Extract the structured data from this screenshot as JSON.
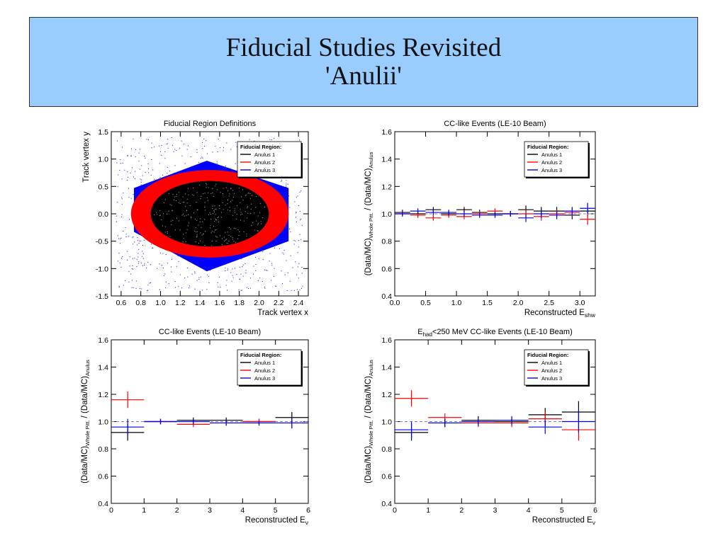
{
  "slide": {
    "title": "Fiducial Studies Revisited",
    "subtitle": "'Anulii'"
  },
  "colors": {
    "title_bg": "#99ccff",
    "anulus1": "#000000",
    "anulus2": "#ff0000",
    "anulus3": "#0000ff",
    "reference_line": "#8080c0"
  },
  "chart_data": [
    {
      "type": "scatter",
      "title": "Fiducial Region Definitions",
      "xlabel": "Track vertex x",
      "ylabel": "Track vertex y",
      "xlim": [
        0.5,
        2.5
      ],
      "ylim": [
        -1.5,
        1.5
      ],
      "xticks": [
        "0.6",
        "0.8",
        "1.0",
        "1.2",
        "1.4",
        "1.6",
        "1.8",
        "2.0",
        "2.2",
        "2.4"
      ],
      "yticks": [
        "-1.5",
        "-1.0",
        "-0.5",
        "0.0",
        "0.5",
        "1.0",
        "1.5"
      ],
      "legend": {
        "title": "Fiducial Region:",
        "entries": [
          "Anulus 1",
          "Anulus 2",
          "Anulus 3"
        ],
        "position": "top-right"
      },
      "regions": [
        {
          "name": "Anulus 3",
          "polygon": [
            [
              0.73,
              -0.33
            ],
            [
              0.73,
              0.47
            ],
            [
              1.47,
              0.97
            ],
            [
              2.3,
              0.47
            ],
            [
              2.3,
              -0.5
            ],
            [
              1.47,
              -1.05
            ]
          ]
        },
        {
          "name": "Anulus 2",
          "center": [
            1.5,
            0.0
          ],
          "rx": 0.8,
          "ry": 0.8
        },
        {
          "name": "Anulus 1",
          "center": [
            1.5,
            0.0
          ],
          "rx": 0.6,
          "ry": 0.6
        }
      ]
    },
    {
      "type": "scatter",
      "title": "CC-like Events (LE-10 Beam)",
      "xlabel": "Reconstructed E",
      "xlabel_sub": "shw",
      "ylabel_parts": [
        "(Data/MC)",
        "Whole Pitt.",
        " / (Data/MC)",
        "Anulus"
      ],
      "xlim": [
        0,
        3.25
      ],
      "ylim": [
        0.4,
        1.6
      ],
      "xticks": [
        "0.0",
        "0.5",
        "1.0",
        "1.5",
        "2.0",
        "2.5",
        "3.0"
      ],
      "yticks": [
        "0.4",
        "0.6",
        "0.8",
        "1.0",
        "1.2",
        "1.4",
        "1.6"
      ],
      "reference": 1.0,
      "legend": {
        "title": "Fiducial Region:",
        "entries": [
          "Anulus 1",
          "Anulus 2",
          "Anulus 3"
        ],
        "position": "top-right"
      },
      "series": [
        {
          "name": "Anulus 1",
          "x": [
            0.125,
            0.375,
            0.625,
            0.875,
            1.125,
            1.375,
            1.625,
            1.875,
            2.125,
            2.375,
            2.625,
            2.875,
            3.125
          ],
          "y": [
            1.01,
            1.0,
            1.03,
            1.0,
            1.03,
            1.01,
            1.0,
            1.0,
            1.03,
            1.02,
            1.02,
            0.99,
            1.02
          ],
          "err": [
            0.02,
            0.02,
            0.02,
            0.02,
            0.02,
            0.02,
            0.02,
            0.02,
            0.03,
            0.03,
            0.03,
            0.03,
            0.04
          ]
        },
        {
          "name": "Anulus 2",
          "x": [
            0.125,
            0.375,
            0.625,
            0.875,
            1.125,
            1.375,
            1.625,
            1.875,
            2.125,
            2.375,
            2.625,
            2.875,
            3.125
          ],
          "y": [
            1.0,
            0.99,
            0.97,
            0.99,
            0.98,
            1.0,
            1.02,
            1.0,
            1.0,
            0.98,
            1.0,
            1.01,
            0.96
          ],
          "err": [
            0.02,
            0.02,
            0.02,
            0.02,
            0.02,
            0.02,
            0.02,
            0.02,
            0.03,
            0.03,
            0.03,
            0.03,
            0.04
          ]
        },
        {
          "name": "Anulus 3",
          "x": [
            0.125,
            0.375,
            0.625,
            0.875,
            1.125,
            1.375,
            1.625,
            1.875,
            2.125,
            2.375,
            2.625,
            2.875,
            3.125
          ],
          "y": [
            1.0,
            1.02,
            1.01,
            1.01,
            1.0,
            0.99,
            0.99,
            1.0,
            0.97,
            1.0,
            0.99,
            1.02,
            1.04
          ],
          "err": [
            0.02,
            0.02,
            0.02,
            0.02,
            0.02,
            0.02,
            0.02,
            0.02,
            0.03,
            0.03,
            0.03,
            0.03,
            0.04
          ]
        }
      ]
    },
    {
      "type": "scatter",
      "title": "CC-like Events (LE-10 Beam)",
      "xlabel": "Reconstructed E",
      "xlabel_sub": "ν",
      "ylabel_parts": [
        "(Data/MC)",
        "Whole Pitt.",
        " / (Data/MC)",
        "Anulus"
      ],
      "xlim": [
        0,
        6
      ],
      "ylim": [
        0.4,
        1.6
      ],
      "xticks": [
        "0",
        "1",
        "2",
        "3",
        "4",
        "5",
        "6"
      ],
      "yticks": [
        "0.4",
        "0.6",
        "0.8",
        "1.0",
        "1.2",
        "1.4",
        "1.6"
      ],
      "reference": 1.0,
      "legend": {
        "title": "Fiducial Region:",
        "entries": [
          "Anulus 1",
          "Anulus 2",
          "Anulus 3"
        ],
        "position": "top-right"
      },
      "series": [
        {
          "name": "Anulus 1",
          "x": [
            0.5,
            1.5,
            2.5,
            3.5,
            4.5,
            5.5
          ],
          "y": [
            0.92,
            1.0,
            1.01,
            1.01,
            1.0,
            1.03
          ],
          "err": [
            0.06,
            0.02,
            0.02,
            0.02,
            0.02,
            0.04
          ]
        },
        {
          "name": "Anulus 2",
          "x": [
            0.5,
            1.5,
            2.5,
            3.5,
            4.5,
            5.5
          ],
          "y": [
            1.16,
            1.0,
            0.98,
            0.99,
            1.0,
            0.99
          ],
          "err": [
            0.06,
            0.02,
            0.02,
            0.02,
            0.02,
            0.04
          ]
        },
        {
          "name": "Anulus 3",
          "x": [
            0.5,
            1.5,
            2.5,
            3.5,
            4.5,
            5.5
          ],
          "y": [
            0.96,
            1.0,
            1.0,
            0.99,
            0.99,
            0.99
          ],
          "err": [
            0.06,
            0.02,
            0.02,
            0.02,
            0.02,
            0.04
          ]
        }
      ]
    },
    {
      "type": "scatter",
      "title_parts": [
        "E",
        "had",
        "<250 MeV CC-like Events (LE-10 Beam)"
      ],
      "xlabel": "Reconstructed E",
      "xlabel_sub": "ν",
      "ylabel_parts": [
        "(Data/MC)",
        "Whole Pitt.",
        " / (Data/MC)",
        "Anulus"
      ],
      "xlim": [
        0,
        6
      ],
      "ylim": [
        0.4,
        1.6
      ],
      "xticks": [
        "0",
        "1",
        "2",
        "3",
        "4",
        "5",
        "6"
      ],
      "yticks": [
        "0.4",
        "0.6",
        "0.8",
        "1.0",
        "1.2",
        "1.4",
        "1.6"
      ],
      "reference": 1.0,
      "legend": {
        "title": "Fiducial Region:",
        "entries": [
          "Anulus 1",
          "Anulus 2",
          "Anulus 3"
        ],
        "position": "top-right"
      },
      "series": [
        {
          "name": "Anulus 1",
          "x": [
            0.5,
            1.5,
            2.5,
            3.5,
            4.5,
            5.5
          ],
          "y": [
            0.92,
            0.99,
            1.01,
            1.0,
            1.05,
            1.07
          ],
          "err": [
            0.06,
            0.03,
            0.03,
            0.03,
            0.05,
            0.08
          ]
        },
        {
          "name": "Anulus 2",
          "x": [
            0.5,
            1.5,
            2.5,
            3.5,
            4.5,
            5.5
          ],
          "y": [
            1.17,
            1.03,
            0.99,
            0.99,
            1.02,
            0.94
          ],
          "err": [
            0.06,
            0.03,
            0.03,
            0.03,
            0.05,
            0.08
          ]
        },
        {
          "name": "Anulus 3",
          "x": [
            0.5,
            1.5,
            2.5,
            3.5,
            4.5,
            5.5
          ],
          "y": [
            0.94,
            0.99,
            1.0,
            1.01,
            0.96,
            1.0
          ],
          "err": [
            0.06,
            0.03,
            0.03,
            0.03,
            0.05,
            0.08
          ]
        }
      ]
    }
  ]
}
